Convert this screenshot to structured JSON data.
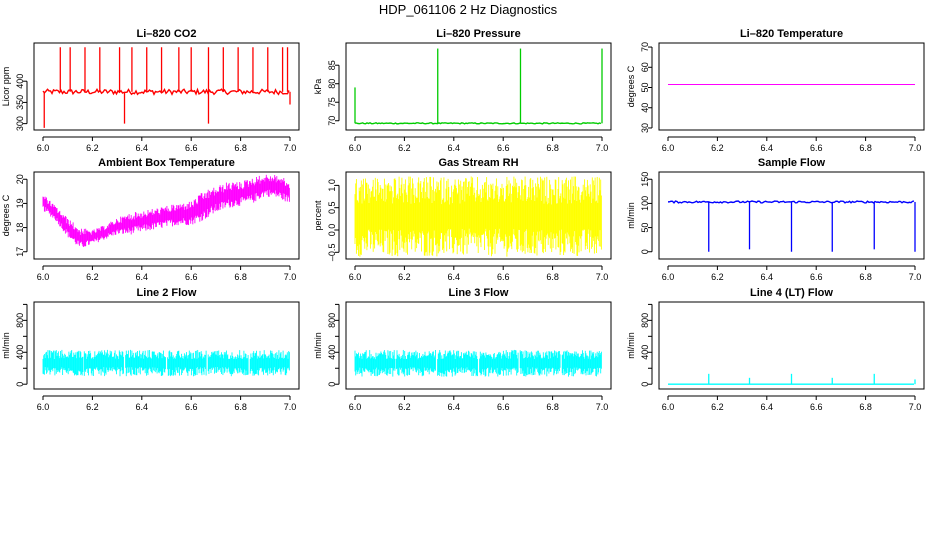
{
  "figure_title": "HDP_061106  2 Hz Diagnostics",
  "chart_data": [
    {
      "type": "line",
      "title": "Li–820 CO2",
      "ylabel": "Licor ppm",
      "color": "#ff0000",
      "xlim": [
        6.0,
        7.0
      ],
      "ylim": [
        285,
        490
      ],
      "xticks": [
        6.0,
        6.2,
        6.4,
        6.6,
        6.8,
        7.0
      ],
      "xtick_labels": [
        "6.0",
        "6.2",
        "6.4",
        "6.6",
        "6.8",
        "7.0"
      ],
      "yticks": [
        300,
        350,
        400
      ],
      "ytick_labels": [
        "300",
        "350",
        "400"
      ],
      "series": [
        {
          "name": "CO2",
          "baseline": 375,
          "spread": 6,
          "spike_x": [
            6.07,
            6.11,
            6.17,
            6.23,
            6.31,
            6.36,
            6.42,
            6.48,
            6.55,
            6.6,
            6.67,
            6.73,
            6.79,
            6.85,
            6.91,
            6.97,
            6.99
          ],
          "spike_y": [
            480,
            480,
            480,
            480,
            480,
            480,
            480,
            480,
            480,
            480,
            480,
            480,
            480,
            480,
            480,
            480,
            480
          ],
          "dip_x": [
            6.005,
            6.33,
            6.67,
            7.0
          ],
          "dip_y": [
            290,
            300,
            300,
            345
          ]
        }
      ]
    },
    {
      "type": "line",
      "title": "Li–820 Pressure",
      "ylabel": "kPa",
      "color": "#00cc00",
      "xlim": [
        6.0,
        7.0
      ],
      "ylim": [
        67.5,
        91
      ],
      "xticks": [
        6.0,
        6.2,
        6.4,
        6.6,
        6.8,
        7.0
      ],
      "xtick_labels": [
        "6.0",
        "6.2",
        "6.4",
        "6.6",
        "6.8",
        "7.0"
      ],
      "yticks": [
        70,
        75,
        80,
        85
      ],
      "ytick_labels": [
        "70",
        "75",
        "80",
        "85"
      ],
      "series": [
        {
          "name": "Pressure",
          "baseline": 69.3,
          "spread": 0.15,
          "spike_x": [
            6.0,
            6.335,
            6.67,
            7.0
          ],
          "spike_y": [
            79,
            89.5,
            89.5,
            89.5
          ]
        }
      ]
    },
    {
      "type": "line",
      "title": "Li–820 Temperature",
      "ylabel": "degrees C",
      "color": "#ff00ff",
      "xlim": [
        6.0,
        7.0
      ],
      "ylim": [
        29,
        72
      ],
      "xticks": [
        6.0,
        6.2,
        6.4,
        6.6,
        6.8,
        7.0
      ],
      "xtick_labels": [
        "6.0",
        "6.2",
        "6.4",
        "6.6",
        "6.8",
        "7.0"
      ],
      "yticks": [
        30,
        40,
        50,
        60,
        70
      ],
      "ytick_labels": [
        "30",
        "40",
        "50",
        "60",
        "70"
      ],
      "series": [
        {
          "name": "Temperature",
          "x": [
            6.0,
            7.0
          ],
          "y": [
            51.5,
            51.5
          ]
        }
      ]
    },
    {
      "type": "area",
      "title": "Ambient Box Temperature",
      "ylabel": "degrees C",
      "color": "#ff00ff",
      "xlim": [
        6.0,
        7.0
      ],
      "ylim": [
        16.7,
        20.3
      ],
      "xticks": [
        6.0,
        6.2,
        6.4,
        6.6,
        6.8,
        7.0
      ],
      "xtick_labels": [
        "6.0",
        "6.2",
        "6.4",
        "6.6",
        "6.8",
        "7.0"
      ],
      "yticks": [
        17,
        18,
        19,
        20
      ],
      "ytick_labels": [
        "17",
        "18",
        "19",
        "20"
      ],
      "series": [
        {
          "name": "Box temperature",
          "x": [
            6.0,
            6.05,
            6.1,
            6.15,
            6.2,
            6.25,
            6.3,
            6.35,
            6.4,
            6.45,
            6.5,
            6.55,
            6.6,
            6.65,
            6.7,
            6.75,
            6.8,
            6.85,
            6.9,
            6.95,
            7.0
          ],
          "y_low": [
            18.7,
            18.3,
            17.6,
            17.1,
            17.3,
            17.5,
            17.7,
            17.7,
            17.8,
            17.9,
            18.0,
            18.1,
            18.1,
            18.3,
            18.6,
            18.8,
            18.9,
            19.0,
            19.3,
            19.2,
            19.0
          ],
          "y_high": [
            19.4,
            18.9,
            18.4,
            18.0,
            17.9,
            18.1,
            18.4,
            18.6,
            18.7,
            18.8,
            18.9,
            19.0,
            19.1,
            19.5,
            19.7,
            19.9,
            19.9,
            20.1,
            20.2,
            20.2,
            19.9
          ]
        }
      ]
    },
    {
      "type": "area",
      "title": "Gas Stream RH",
      "ylabel": "percent",
      "color": "#ffff00",
      "xlim": [
        6.0,
        7.0
      ],
      "ylim": [
        -0.65,
        1.3
      ],
      "xticks": [
        6.0,
        6.2,
        6.4,
        6.6,
        6.8,
        7.0
      ],
      "xtick_labels": [
        "6.0",
        "6.2",
        "6.4",
        "6.6",
        "6.8",
        "7.0"
      ],
      "yticks": [
        -0.5,
        0.0,
        0.5,
        1.0
      ],
      "ytick_labels": [
        "–0.5",
        "0.0",
        "0.5",
        "1.0"
      ],
      "series": [
        {
          "name": "RH",
          "x": [
            6.0,
            7.0
          ],
          "y_low": [
            -0.6,
            -0.6
          ],
          "y_high": [
            1.2,
            1.2
          ]
        }
      ]
    },
    {
      "type": "line",
      "title": "Sample Flow",
      "ylabel": "ml/min",
      "color": "#0000ff",
      "xlim": [
        6.0,
        7.0
      ],
      "ylim": [
        -15,
        165
      ],
      "xticks": [
        6.0,
        6.2,
        6.4,
        6.6,
        6.8,
        7.0
      ],
      "xtick_labels": [
        "6.0",
        "6.2",
        "6.4",
        "6.6",
        "6.8",
        "7.0"
      ],
      "yticks": [
        0,
        50,
        100,
        150
      ],
      "ytick_labels": [
        "0",
        "50",
        "100",
        "150"
      ],
      "series": [
        {
          "name": "Sample flow",
          "baseline": 103,
          "spread": 2,
          "dip_x": [
            6.165,
            6.33,
            6.5,
            6.665,
            6.835,
            7.0
          ],
          "dip_y": [
            0,
            5,
            0,
            0,
            5,
            0
          ]
        }
      ]
    },
    {
      "type": "area",
      "title": "Line 2 Flow",
      "ylabel": "ml/min",
      "color": "#00ffff",
      "xlim": [
        6.0,
        7.0
      ],
      "ylim": [
        -60,
        1030
      ],
      "xticks": [
        6.0,
        6.2,
        6.4,
        6.6,
        6.8,
        7.0
      ],
      "xtick_labels": [
        "6.0",
        "6.2",
        "6.4",
        "6.6",
        "6.8",
        "7.0"
      ],
      "yticks": [
        0,
        200,
        400,
        600,
        800,
        1000
      ],
      "ytick_labels": [
        "0",
        "",
        "400",
        "",
        "800",
        ""
      ],
      "series": [
        {
          "name": "Line 2",
          "x": [
            6.0,
            7.0
          ],
          "y_low": [
            100,
            100
          ],
          "y_high": [
            430,
            430
          ],
          "gap_x": [
            6.165,
            6.33,
            6.5,
            6.665,
            6.835
          ]
        }
      ]
    },
    {
      "type": "area",
      "title": "Line 3 Flow",
      "ylabel": "ml/min",
      "color": "#00ffff",
      "xlim": [
        6.0,
        7.0
      ],
      "ylim": [
        -60,
        1030
      ],
      "xticks": [
        6.0,
        6.2,
        6.4,
        6.6,
        6.8,
        7.0
      ],
      "xtick_labels": [
        "6.0",
        "6.2",
        "6.4",
        "6.6",
        "6.8",
        "7.0"
      ],
      "yticks": [
        0,
        200,
        400,
        600,
        800,
        1000
      ],
      "ytick_labels": [
        "0",
        "",
        "400",
        "",
        "800",
        ""
      ],
      "series": [
        {
          "name": "Line 3",
          "x": [
            6.0,
            7.0
          ],
          "y_low": [
            95,
            95
          ],
          "y_high": [
            430,
            430
          ],
          "gap_x": [
            6.165,
            6.33,
            6.5,
            6.665,
            6.835
          ]
        }
      ]
    },
    {
      "type": "line",
      "title": "Line 4 (LT) Flow",
      "ylabel": "ml/min",
      "color": "#00ffff",
      "xlim": [
        6.0,
        7.0
      ],
      "ylim": [
        -60,
        1030
      ],
      "xticks": [
        6.0,
        6.2,
        6.4,
        6.6,
        6.8,
        7.0
      ],
      "xtick_labels": [
        "6.0",
        "6.2",
        "6.4",
        "6.6",
        "6.8",
        "7.0"
      ],
      "yticks": [
        0,
        200,
        400,
        600,
        800,
        1000
      ],
      "ytick_labels": [
        "0",
        "",
        "400",
        "",
        "800",
        ""
      ],
      "series": [
        {
          "name": "Line 4",
          "baseline": 0,
          "spread": 0,
          "spike_x": [
            6.165,
            6.33,
            6.5,
            6.665,
            6.835,
            7.0
          ],
          "spike_y": [
            130,
            80,
            130,
            80,
            130,
            60
          ]
        }
      ]
    }
  ]
}
